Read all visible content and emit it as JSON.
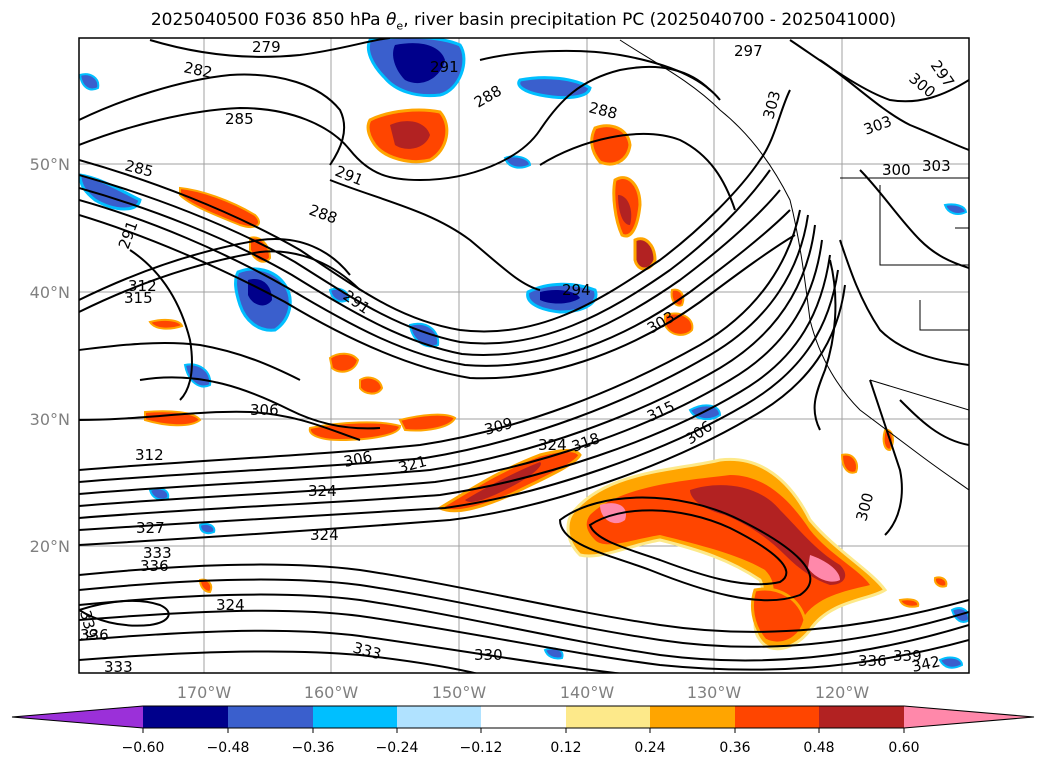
{
  "title": {
    "prefix": "2025040500 F036 850 hPa ",
    "theta": "θ",
    "sub": "e",
    "suffix": ", river basin precipitation PC (2025040700 - 2025041000)"
  },
  "axes": {
    "lat_labels": [
      "50°N",
      "40°N",
      "30°N",
      "20°N"
    ],
    "lon_labels": [
      "170°W",
      "160°W",
      "150°W",
      "140°W",
      "130°W",
      "120°W"
    ]
  },
  "colorbar": {
    "ticks": [
      "−0.60",
      "−0.48",
      "−0.36",
      "−0.24",
      "−0.12",
      "0.12",
      "0.24",
      "0.36",
      "0.48",
      "0.60"
    ],
    "colors": [
      "#9b30d9",
      "#00008b",
      "#3a5fcd",
      "#00bfff",
      "#b0e2ff",
      "#ffffff",
      "#fde98a",
      "#ffa500",
      "#ff4500",
      "#b22222",
      "#ff88aa"
    ]
  },
  "contour_labels": [
    "279",
    "282",
    "285",
    "285",
    "291",
    "291",
    "288",
    "288",
    "297",
    "297",
    "300",
    "303",
    "303",
    "300",
    "288",
    "291",
    "294",
    "312",
    "315",
    "303",
    "306",
    "315",
    "306",
    "312",
    "309",
    "324",
    "318",
    "306",
    "321",
    "324",
    "300",
    "327",
    "333",
    "336",
    "324",
    "324",
    "339",
    "336",
    "333",
    "330",
    "333",
    "336",
    "339",
    "342",
    "291",
    "303"
  ],
  "legend_colors": {
    "blue_dark": "#00008b",
    "blue_mid": "#3a5fcd",
    "blue_light": "#00bfff",
    "orange": "#ffa500",
    "red": "#ff4500",
    "darkred": "#b22222",
    "pink": "#ff88aa",
    "yellow": "#fde98a"
  }
}
